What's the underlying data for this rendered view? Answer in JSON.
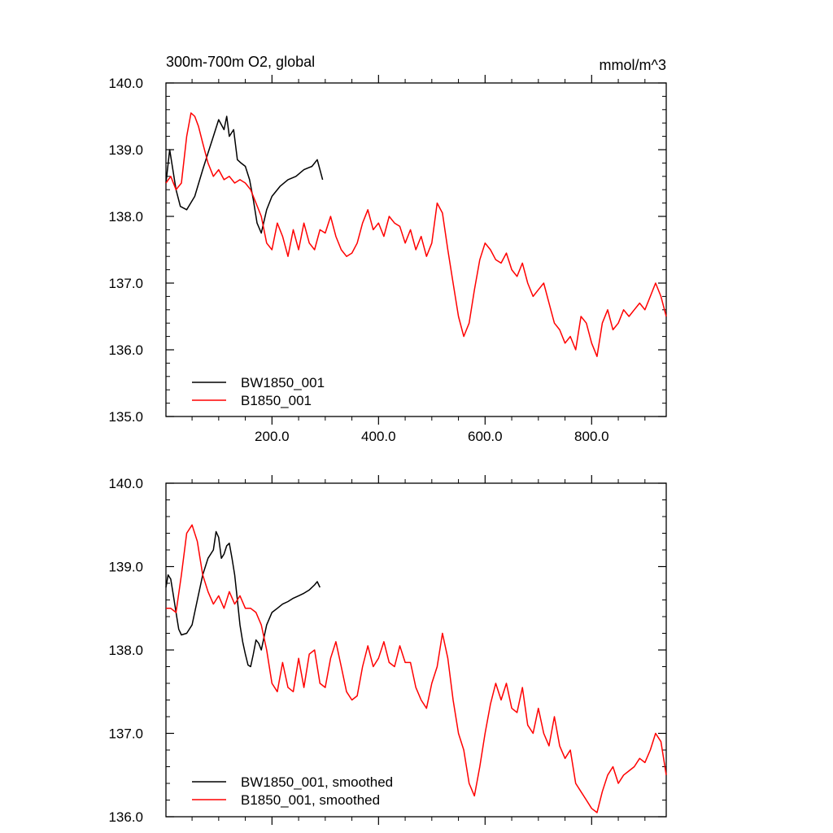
{
  "chart_data": [
    {
      "type": "line",
      "title": "300m-700m O2, global",
      "units": "mmol/m^3",
      "xlim": [
        1,
        940
      ],
      "ylim": [
        135.0,
        140.0
      ],
      "x_ticks": [
        200,
        400,
        600,
        800
      ],
      "x_tick_labels": [
        "200.0",
        "400.0",
        "600.0",
        "800.0"
      ],
      "y_ticks": [
        135,
        136,
        137,
        138,
        139,
        140
      ],
      "y_tick_labels": [
        "135.0",
        "136.0",
        "137.0",
        "138.0",
        "139.0",
        "140.0"
      ],
      "grid": false,
      "legend_position": "bottom-left",
      "series": [
        {
          "name": "BW1850_001",
          "color": "#000000",
          "x": [
            1,
            8,
            14,
            20,
            28,
            40,
            55,
            70,
            80,
            90,
            100,
            110,
            115,
            120,
            128,
            135,
            142,
            150,
            158,
            165,
            172,
            180,
            190,
            200,
            215,
            230,
            245,
            260,
            275,
            285,
            290,
            295
          ],
          "y": [
            138.5,
            139.0,
            138.7,
            138.4,
            138.15,
            138.1,
            138.3,
            138.7,
            138.95,
            139.2,
            139.45,
            139.3,
            139.5,
            139.2,
            139.3,
            138.85,
            138.8,
            138.75,
            138.55,
            138.25,
            137.9,
            137.75,
            138.1,
            138.3,
            138.45,
            138.55,
            138.6,
            138.7,
            138.75,
            138.85,
            138.7,
            138.55
          ]
        },
        {
          "name": "B1850_001",
          "color": "#ff0000",
          "x": [
            1,
            10,
            20,
            30,
            40,
            48,
            55,
            62,
            70,
            80,
            90,
            100,
            110,
            120,
            130,
            140,
            150,
            160,
            170,
            180,
            190,
            200,
            210,
            220,
            230,
            240,
            250,
            260,
            270,
            280,
            290,
            300,
            310,
            320,
            330,
            340,
            350,
            360,
            370,
            380,
            390,
            400,
            410,
            420,
            430,
            440,
            450,
            460,
            470,
            480,
            490,
            500,
            510,
            520,
            530,
            540,
            550,
            560,
            570,
            580,
            590,
            600,
            610,
            620,
            630,
            640,
            650,
            660,
            670,
            680,
            690,
            700,
            710,
            720,
            730,
            740,
            750,
            760,
            770,
            780,
            790,
            800,
            810,
            820,
            830,
            840,
            850,
            860,
            870,
            880,
            890,
            900,
            910,
            920,
            930,
            940
          ],
          "y": [
            138.5,
            138.6,
            138.4,
            138.5,
            139.2,
            139.55,
            139.5,
            139.35,
            139.1,
            138.8,
            138.6,
            138.7,
            138.55,
            138.6,
            138.5,
            138.55,
            138.5,
            138.4,
            138.2,
            138.0,
            137.6,
            137.5,
            137.9,
            137.7,
            137.4,
            137.8,
            137.5,
            137.9,
            137.6,
            137.5,
            137.8,
            137.75,
            138.0,
            137.7,
            137.5,
            137.4,
            137.45,
            137.6,
            137.9,
            138.1,
            137.8,
            137.9,
            137.7,
            138.0,
            137.9,
            137.85,
            137.6,
            137.8,
            137.5,
            137.7,
            137.4,
            137.6,
            138.2,
            138.05,
            137.5,
            137.0,
            136.5,
            136.2,
            136.4,
            136.9,
            137.35,
            137.6,
            137.5,
            137.35,
            137.3,
            137.45,
            137.2,
            137.1,
            137.3,
            137.0,
            136.8,
            136.9,
            137.0,
            136.7,
            136.4,
            136.3,
            136.1,
            136.2,
            136.0,
            136.5,
            136.4,
            136.1,
            135.9,
            136.4,
            136.6,
            136.3,
            136.4,
            136.6,
            136.5,
            136.6,
            136.7,
            136.6,
            136.8,
            137.0,
            136.8,
            136.5
          ]
        }
      ]
    },
    {
      "type": "line",
      "title": "",
      "units": "",
      "xlim": [
        1,
        940
      ],
      "ylim": [
        136.0,
        140.0
      ],
      "x_ticks": [
        200,
        400,
        600,
        800
      ],
      "x_tick_labels": [
        "",
        "",
        "",
        ""
      ],
      "y_ticks": [
        136,
        137,
        138,
        139,
        140
      ],
      "y_tick_labels": [
        "136.0",
        "137.0",
        "138.0",
        "139.0",
        "140.0"
      ],
      "grid": false,
      "legend_position": "bottom-left",
      "series": [
        {
          "name": "BW1850_001, smoothed",
          "color": "#000000",
          "x": [
            1,
            5,
            10,
            15,
            20,
            25,
            30,
            40,
            50,
            60,
            70,
            80,
            90,
            95,
            100,
            105,
            110,
            115,
            120,
            125,
            130,
            135,
            140,
            145,
            150,
            155,
            160,
            165,
            170,
            175,
            180,
            185,
            190,
            200,
            210,
            220,
            230,
            240,
            250,
            260,
            270,
            280,
            285,
            290
          ],
          "y": [
            138.75,
            138.9,
            138.85,
            138.65,
            138.45,
            138.25,
            138.18,
            138.2,
            138.3,
            138.6,
            138.9,
            139.1,
            139.2,
            139.42,
            139.35,
            139.1,
            139.15,
            139.25,
            139.28,
            139.1,
            138.9,
            138.6,
            138.3,
            138.1,
            137.95,
            137.82,
            137.8,
            137.95,
            138.12,
            138.08,
            138.0,
            138.15,
            138.3,
            138.45,
            138.5,
            138.55,
            138.58,
            138.62,
            138.65,
            138.68,
            138.72,
            138.78,
            138.82,
            138.75
          ]
        },
        {
          "name": "B1850_001, smoothed",
          "color": "#ff0000",
          "x": [
            1,
            10,
            20,
            30,
            40,
            50,
            60,
            70,
            80,
            90,
            100,
            110,
            120,
            130,
            140,
            150,
            160,
            170,
            180,
            190,
            200,
            210,
            220,
            230,
            240,
            250,
            260,
            270,
            280,
            290,
            300,
            310,
            320,
            330,
            340,
            350,
            360,
            370,
            380,
            390,
            400,
            410,
            420,
            430,
            440,
            450,
            460,
            470,
            480,
            490,
            500,
            510,
            520,
            530,
            540,
            550,
            560,
            570,
            580,
            590,
            600,
            610,
            620,
            630,
            640,
            650,
            660,
            670,
            680,
            690,
            700,
            710,
            720,
            730,
            740,
            750,
            760,
            770,
            780,
            790,
            800,
            810,
            820,
            830,
            840,
            850,
            860,
            870,
            880,
            890,
            900,
            910,
            920,
            930,
            940
          ],
          "y": [
            138.5,
            138.5,
            138.45,
            138.9,
            139.4,
            139.5,
            139.3,
            138.9,
            138.7,
            138.55,
            138.65,
            138.5,
            138.7,
            138.55,
            138.65,
            138.5,
            138.5,
            138.45,
            138.3,
            138.0,
            137.6,
            137.5,
            137.85,
            137.55,
            137.5,
            137.9,
            137.55,
            137.95,
            138.0,
            137.6,
            137.55,
            137.9,
            138.1,
            137.8,
            137.5,
            137.4,
            137.45,
            137.8,
            138.05,
            137.8,
            137.9,
            138.1,
            137.85,
            137.8,
            138.05,
            137.85,
            137.85,
            137.55,
            137.4,
            137.3,
            137.6,
            137.8,
            138.2,
            137.9,
            137.4,
            137.0,
            136.8,
            136.4,
            136.25,
            136.6,
            137.0,
            137.35,
            137.6,
            137.4,
            137.6,
            137.3,
            137.25,
            137.55,
            137.1,
            137.0,
            137.3,
            137.0,
            136.85,
            137.2,
            136.85,
            136.7,
            136.8,
            136.4,
            136.3,
            136.2,
            136.1,
            136.05,
            136.3,
            136.5,
            136.6,
            136.4,
            136.5,
            136.55,
            136.6,
            136.7,
            136.65,
            136.8,
            137.0,
            136.9,
            136.5
          ]
        }
      ]
    }
  ]
}
